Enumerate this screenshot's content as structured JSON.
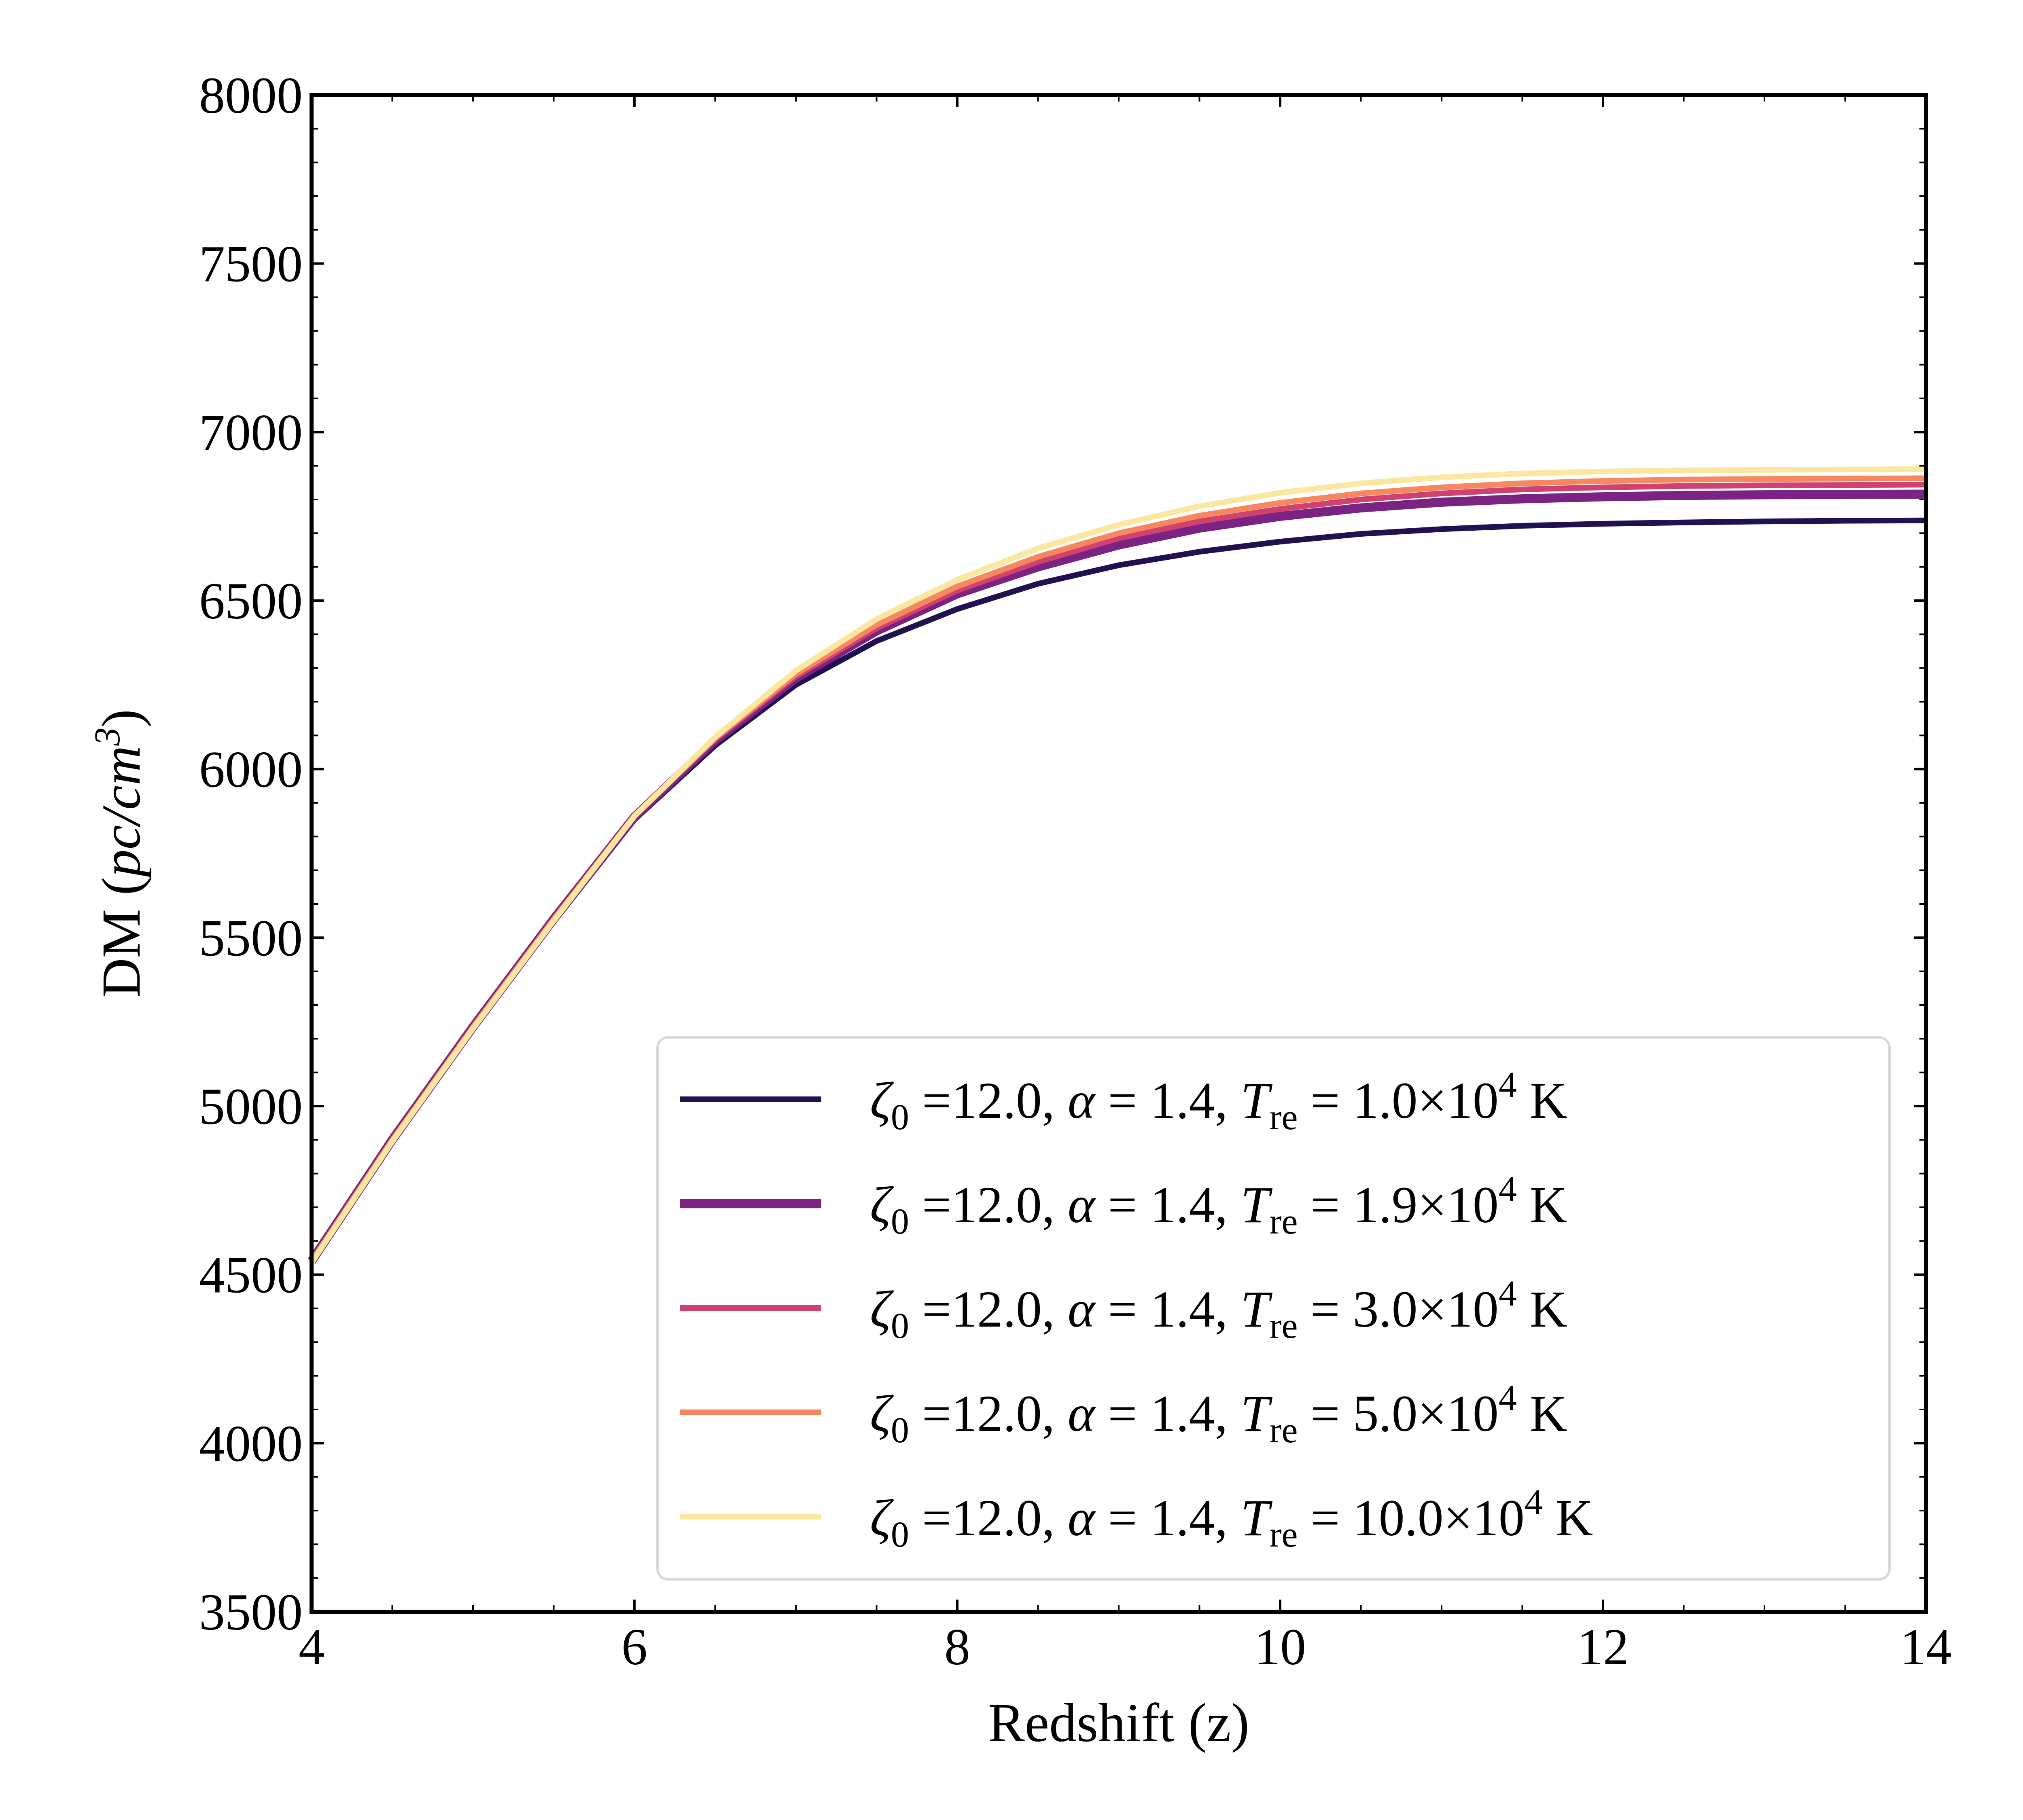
{
  "chart_data": {
    "type": "line",
    "title": "",
    "xlabel": "Redshift (z)",
    "ylabel_prefix": "DM (",
    "ylabel_unit": "pc/cm",
    "ylabel_exp": "3",
    "ylabel_suffix": ")",
    "xlim": [
      4,
      14
    ],
    "ylim": [
      3500,
      8000
    ],
    "xticks": [
      4,
      6,
      8,
      10,
      12,
      14
    ],
    "yticks": [
      3500,
      4000,
      4500,
      5000,
      5500,
      6000,
      6500,
      7000,
      7500,
      8000
    ],
    "x_minor_step": 0.5,
    "y_minor_step": 100,
    "grid": false,
    "legend_position": "lower-right",
    "x": [
      4,
      4.5,
      5,
      5.5,
      6,
      6.5,
      7,
      7.5,
      8,
      8.5,
      9,
      9.5,
      10,
      10.5,
      11,
      11.5,
      12,
      12.5,
      13,
      13.5,
      14
    ],
    "series": [
      {
        "name": "ζ0 =12.0, α = 1.4, Tre = 1.0×10^4 K",
        "legend": {
          "zeta": "ζ",
          "zeta_sub": "0",
          "zeta_val": " =12.0, ",
          "alpha": "α",
          "alpha_val": " = 1.4, ",
          "T": "T",
          "T_sub": "re",
          "T_val": " = 1.0×10",
          "T_exp": "4",
          "unit": " K"
        },
        "color": "#221150",
        "width_factor": 1.0,
        "values": [
          4540,
          4895,
          5230,
          5550,
          5850,
          6070,
          6250,
          6380,
          6475,
          6550,
          6605,
          6645,
          6675,
          6698,
          6712,
          6722,
          6728,
          6732,
          6735,
          6737,
          6738
        ]
      },
      {
        "name": "ζ0 =12.0, α = 1.4, Tre = 1.9×10^4 K",
        "legend": {
          "zeta": "ζ",
          "zeta_sub": "0",
          "zeta_val": " =12.0, ",
          "alpha": "α",
          "alpha_val": " = 1.4, ",
          "T": "T",
          "T_sub": "re",
          "T_val": " = 1.9×10",
          "T_exp": "4",
          "unit": " K"
        },
        "color": "#7b2382",
        "width_factor": 1.6,
        "values": [
          4540,
          4900,
          5235,
          5555,
          5858,
          6085,
          6270,
          6410,
          6520,
          6600,
          6665,
          6715,
          6750,
          6775,
          6792,
          6802,
          6808,
          6812,
          6814,
          6815,
          6816
        ]
      },
      {
        "name": "ζ0 =12.0, α = 1.4, Tre = 3.0×10^4 K",
        "legend": {
          "zeta": "ζ",
          "zeta_sub": "0",
          "zeta_val": " =12.0, ",
          "alpha": "α",
          "alpha_val": " = 1.4, ",
          "T": "T",
          "T_sub": "re",
          "T_val": " = 3.0×10",
          "T_exp": "4",
          "unit": " K"
        },
        "color": "#d0416f",
        "width_factor": 1.0,
        "values": [
          4540,
          4900,
          5235,
          5555,
          5860,
          6088,
          6275,
          6418,
          6530,
          6615,
          6685,
          6735,
          6772,
          6800,
          6818,
          6830,
          6836,
          6840,
          6842,
          6843,
          6844
        ]
      },
      {
        "name": "ζ0 =12.0, α = 1.4, Tre = 5.0×10^4 K",
        "legend": {
          "zeta": "ζ",
          "zeta_sub": "0",
          "zeta_val": " =12.0, ",
          "alpha": "α",
          "alpha_val": " = 1.4, ",
          "T": "T",
          "T_sub": "re",
          "T_val": " = 5.0×10",
          "T_exp": "4",
          "unit": " K"
        },
        "color": "#f6875f",
        "width_factor": 1.0,
        "values": [
          4540,
          4900,
          5235,
          5555,
          5862,
          6092,
          6282,
          6428,
          6542,
          6630,
          6700,
          6752,
          6790,
          6818,
          6836,
          6848,
          6855,
          6859,
          6861,
          6862,
          6863
        ]
      },
      {
        "name": "ζ0 =12.0, α = 1.4, Tre = 10.0×10^4 K",
        "legend": {
          "zeta": "ζ",
          "zeta_sub": "0",
          "zeta_val": " =12.0, ",
          "alpha": "α",
          "alpha_val": " = 1.4, ",
          "T": "T",
          "T_sub": "re",
          "T_val": " = 10.0×10",
          "T_exp": "4",
          "unit": " K"
        },
        "color": "#fbe7a0",
        "width_factor": 1.0,
        "values": [
          4535,
          4895,
          5230,
          5550,
          5860,
          6095,
          6292,
          6445,
          6562,
          6655,
          6725,
          6780,
          6820,
          6848,
          6866,
          6877,
          6883,
          6886,
          6888,
          6889,
          6890
        ]
      }
    ]
  }
}
